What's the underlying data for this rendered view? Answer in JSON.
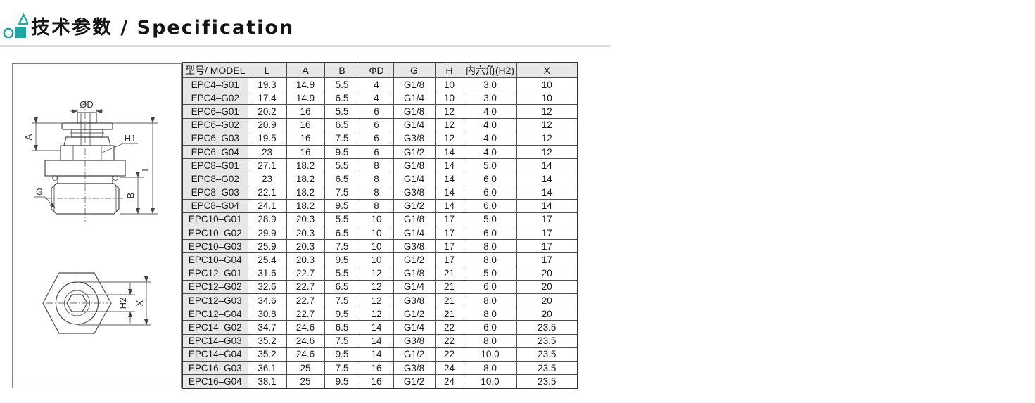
{
  "header": {
    "title": "技术参数 / Specification",
    "accent_color": "#1ca8a2"
  },
  "drawing": {
    "labels": {
      "diameter": "ØD",
      "a": "A",
      "h1": "H1",
      "g": "G",
      "b": "B",
      "l": "L",
      "h2": "H2",
      "x": "X"
    }
  },
  "table": {
    "headers": [
      "型号/ MODEL",
      "L",
      "A",
      "B",
      "ΦD",
      "G",
      "H",
      "内六角(H2)",
      "X"
    ],
    "header_bg": "#e7e7e7",
    "border_color": "#333333",
    "rows": [
      [
        "EPC4–G01",
        "19.3",
        "14.9",
        "5.5",
        "4",
        "G1/8",
        "10",
        "3.0",
        "10"
      ],
      [
        "EPC4–G02",
        "17.4",
        "14.9",
        "6.5",
        "4",
        "G1/4",
        "10",
        "3.0",
        "10"
      ],
      [
        "EPC6–G01",
        "20.2",
        "16",
        "5.5",
        "6",
        "G1/8",
        "12",
        "4.0",
        "12"
      ],
      [
        "EPC6–G02",
        "20.9",
        "16",
        "6.5",
        "6",
        "G1/4",
        "12",
        "4.0",
        "12"
      ],
      [
        "EPC6–G03",
        "19.5",
        "16",
        "7.5",
        "6",
        "G3/8",
        "12",
        "4.0",
        "12"
      ],
      [
        "EPC6–G04",
        "23",
        "16",
        "9.5",
        "6",
        "G1/2",
        "14",
        "4.0",
        "12"
      ],
      [
        "EPC8–G01",
        "27.1",
        "18.2",
        "5.5",
        "8",
        "G1/8",
        "14",
        "5.0",
        "14"
      ],
      [
        "EPC8–G02",
        "23",
        "18.2",
        "6.5",
        "8",
        "G1/4",
        "14",
        "6.0",
        "14"
      ],
      [
        "EPC8–G03",
        "22.1",
        "18.2",
        "7.5",
        "8",
        "G3/8",
        "14",
        "6.0",
        "14"
      ],
      [
        "EPC8–G04",
        "24.1",
        "18.2",
        "9.5",
        "8",
        "G1/2",
        "14",
        "6.0",
        "14"
      ],
      [
        "EPC10–G01",
        "28.9",
        "20.3",
        "5.5",
        "10",
        "G1/8",
        "17",
        "5.0",
        "17"
      ],
      [
        "EPC10–G02",
        "29.9",
        "20.3",
        "6.5",
        "10",
        "G1/4",
        "17",
        "6.0",
        "17"
      ],
      [
        "EPC10–G03",
        "25.9",
        "20.3",
        "7.5",
        "10",
        "G3/8",
        "17",
        "8.0",
        "17"
      ],
      [
        "EPC10–G04",
        "25.4",
        "20.3",
        "9.5",
        "10",
        "G1/2",
        "17",
        "8.0",
        "17"
      ],
      [
        "EPC12–G01",
        "31.6",
        "22.7",
        "5.5",
        "12",
        "G1/8",
        "21",
        "5.0",
        "20"
      ],
      [
        "EPC12–G02",
        "32.6",
        "22.7",
        "6.5",
        "12",
        "G1/4",
        "21",
        "6.0",
        "20"
      ],
      [
        "EPC12–G03",
        "34.6",
        "22.7",
        "7.5",
        "12",
        "G3/8",
        "21",
        "8.0",
        "20"
      ],
      [
        "EPC12–G04",
        "30.8",
        "22.7",
        "9.5",
        "12",
        "G1/2",
        "21",
        "8.0",
        "20"
      ],
      [
        "EPC14–G02",
        "34.7",
        "24.6",
        "6.5",
        "14",
        "G1/4",
        "22",
        "6.0",
        "23.5"
      ],
      [
        "EPC14–G03",
        "35.2",
        "24.6",
        "7.5",
        "14",
        "G3/8",
        "22",
        "8.0",
        "23.5"
      ],
      [
        "EPC14–G04",
        "35.2",
        "24.6",
        "9.5",
        "14",
        "G1/2",
        "22",
        "10.0",
        "23.5"
      ],
      [
        "EPC16–G03",
        "36.1",
        "25",
        "7.5",
        "16",
        "G3/8",
        "24",
        "8.0",
        "23.5"
      ],
      [
        "EPC16–G04",
        "38.1",
        "25",
        "9.5",
        "16",
        "G1/2",
        "24",
        "10.0",
        "23.5"
      ]
    ]
  }
}
